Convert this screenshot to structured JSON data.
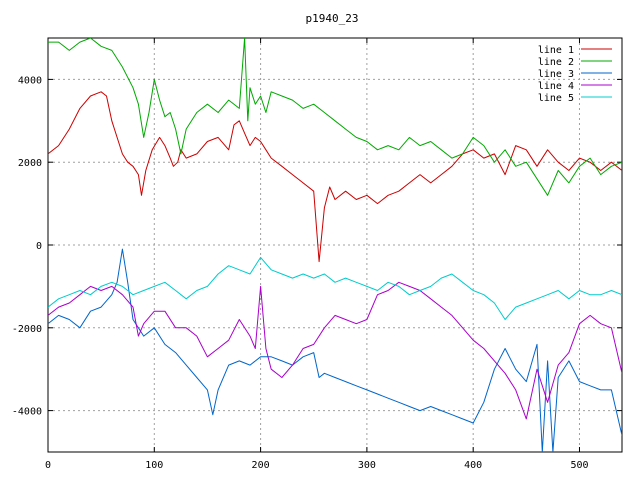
{
  "chart_data": {
    "type": "line",
    "title": "p1940_23",
    "xlabel": "",
    "ylabel": "",
    "xlim": [
      0,
      540
    ],
    "ylim": [
      -5000,
      5000
    ],
    "xticks": [
      0,
      100,
      200,
      300,
      400,
      500
    ],
    "yticks": [
      -4000,
      -2000,
      0,
      2000,
      4000
    ],
    "grid": true,
    "legend_position": "top-right",
    "series": [
      {
        "name": "line 1",
        "color": "#cc0000",
        "x": [
          0,
          10,
          20,
          30,
          40,
          50,
          55,
          60,
          65,
          70,
          75,
          80,
          85,
          88,
          92,
          98,
          105,
          110,
          115,
          118,
          122,
          125,
          130,
          140,
          150,
          160,
          170,
          175,
          180,
          185,
          190,
          195,
          200,
          205,
          210,
          220,
          230,
          240,
          250,
          255,
          260,
          265,
          270,
          280,
          290,
          300,
          310,
          320,
          330,
          340,
          350,
          360,
          370,
          380,
          390,
          400,
          410,
          420,
          430,
          440,
          450,
          460,
          470,
          480,
          490,
          500,
          510,
          520,
          530,
          540
        ],
        "y": [
          2200,
          2400,
          2800,
          3300,
          3600,
          3700,
          3600,
          3000,
          2600,
          2200,
          2000,
          1900,
          1700,
          1200,
          1800,
          2300,
          2600,
          2400,
          2100,
          1900,
          2000,
          2300,
          2100,
          2200,
          2500,
          2600,
          2300,
          2900,
          3000,
          2700,
          2400,
          2600,
          2500,
          2300,
          2100,
          1900,
          1700,
          1500,
          1300,
          -400,
          900,
          1400,
          1100,
          1300,
          1100,
          1200,
          1000,
          1200,
          1300,
          1500,
          1700,
          1500,
          1700,
          1900,
          2200,
          2300,
          2100,
          2200,
          1700,
          2400,
          2300,
          1900,
          2300,
          2000,
          1800,
          2100,
          2000,
          1800,
          2000,
          1800
        ]
      },
      {
        "name": "line 2",
        "color": "#00aa00",
        "x": [
          0,
          10,
          20,
          30,
          40,
          50,
          60,
          70,
          80,
          85,
          90,
          95,
          100,
          105,
          110,
          115,
          120,
          125,
          130,
          140,
          150,
          160,
          170,
          180,
          185,
          188,
          190,
          195,
          200,
          205,
          210,
          220,
          230,
          240,
          250,
          260,
          270,
          280,
          290,
          300,
          310,
          320,
          330,
          340,
          350,
          360,
          370,
          380,
          390,
          400,
          410,
          420,
          430,
          440,
          450,
          460,
          470,
          480,
          490,
          500,
          510,
          520,
          530,
          540
        ],
        "y": [
          4900,
          4900,
          4700,
          4900,
          5000,
          4800,
          4700,
          4300,
          3800,
          3400,
          2600,
          3200,
          4000,
          3500,
          3100,
          3200,
          2800,
          2200,
          2800,
          3200,
          3400,
          3200,
          3500,
          3300,
          5000,
          3000,
          3800,
          3400,
          3600,
          3200,
          3700,
          3600,
          3500,
          3300,
          3400,
          3200,
          3000,
          2800,
          2600,
          2500,
          2300,
          2400,
          2300,
          2600,
          2400,
          2500,
          2300,
          2100,
          2200,
          2600,
          2400,
          2000,
          2300,
          1900,
          2000,
          1600,
          1200,
          1800,
          1500,
          1900,
          2100,
          1700,
          1900,
          2000
        ]
      },
      {
        "name": "line 3",
        "color": "#0066cc",
        "x": [
          0,
          10,
          20,
          30,
          40,
          50,
          60,
          65,
          70,
          75,
          80,
          85,
          90,
          100,
          110,
          120,
          130,
          140,
          150,
          155,
          160,
          170,
          180,
          190,
          200,
          210,
          220,
          230,
          240,
          250,
          255,
          260,
          270,
          280,
          290,
          300,
          310,
          320,
          330,
          340,
          350,
          360,
          370,
          380,
          390,
          400,
          410,
          420,
          430,
          440,
          450,
          460,
          465,
          470,
          475,
          480,
          490,
          500,
          510,
          520,
          530,
          540
        ],
        "y": [
          -1900,
          -1700,
          -1800,
          -2000,
          -1600,
          -1500,
          -1200,
          -900,
          -100,
          -900,
          -1800,
          -2000,
          -2200,
          -2000,
          -2400,
          -2600,
          -2900,
          -3200,
          -3500,
          -4100,
          -3500,
          -2900,
          -2800,
          -2900,
          -2700,
          -2700,
          -2800,
          -2900,
          -2700,
          -2600,
          -3200,
          -3100,
          -3200,
          -3300,
          -3400,
          -3500,
          -3600,
          -3700,
          -3800,
          -3900,
          -4000,
          -3900,
          -4000,
          -4100,
          -4200,
          -4300,
          -3800,
          -3000,
          -2500,
          -3000,
          -3300,
          -2400,
          -5000,
          -2800,
          -5000,
          -3200,
          -2800,
          -3300,
          -3400,
          -3500,
          -3500,
          -4600
        ]
      },
      {
        "name": "line 4",
        "color": "#aa00cc",
        "x": [
          0,
          10,
          20,
          30,
          40,
          50,
          60,
          70,
          80,
          85,
          90,
          100,
          110,
          120,
          130,
          140,
          150,
          160,
          170,
          180,
          190,
          195,
          200,
          205,
          210,
          220,
          230,
          240,
          250,
          260,
          270,
          280,
          290,
          300,
          310,
          320,
          330,
          340,
          350,
          360,
          370,
          380,
          390,
          400,
          410,
          420,
          430,
          440,
          450,
          460,
          470,
          480,
          490,
          500,
          510,
          520,
          530,
          540
        ],
        "y": [
          -1700,
          -1500,
          -1400,
          -1200,
          -1000,
          -1100,
          -1000,
          -1200,
          -1500,
          -2200,
          -1900,
          -1600,
          -1600,
          -2000,
          -2000,
          -2200,
          -2700,
          -2500,
          -2300,
          -1800,
          -2200,
          -2500,
          -1000,
          -2500,
          -3000,
          -3200,
          -2900,
          -2500,
          -2400,
          -2000,
          -1700,
          -1800,
          -1900,
          -1800,
          -1200,
          -1100,
          -900,
          -1000,
          -1100,
          -1300,
          -1500,
          -1700,
          -2000,
          -2300,
          -2500,
          -2800,
          -3100,
          -3500,
          -4200,
          -3000,
          -3800,
          -2900,
          -2600,
          -1900,
          -1700,
          -1900,
          -2000,
          -3100
        ]
      },
      {
        "name": "line 5",
        "color": "#00cccc",
        "x": [
          0,
          10,
          20,
          30,
          40,
          50,
          60,
          70,
          80,
          90,
          100,
          110,
          120,
          130,
          140,
          150,
          160,
          170,
          180,
          190,
          200,
          210,
          220,
          230,
          240,
          250,
          260,
          270,
          280,
          290,
          300,
          310,
          320,
          330,
          340,
          350,
          360,
          370,
          380,
          390,
          400,
          410,
          420,
          430,
          440,
          450,
          460,
          470,
          480,
          490,
          500,
          510,
          520,
          530,
          540
        ],
        "y": [
          -1500,
          -1300,
          -1200,
          -1100,
          -1200,
          -1000,
          -900,
          -1000,
          -1200,
          -1100,
          -1000,
          -900,
          -1100,
          -1300,
          -1100,
          -1000,
          -700,
          -500,
          -600,
          -700,
          -300,
          -600,
          -700,
          -800,
          -700,
          -800,
          -700,
          -900,
          -800,
          -900,
          -1000,
          -1100,
          -900,
          -1000,
          -1200,
          -1100,
          -1000,
          -800,
          -700,
          -900,
          -1100,
          -1200,
          -1400,
          -1800,
          -1500,
          -1400,
          -1300,
          -1200,
          -1100,
          -1300,
          -1100,
          -1200,
          -1200,
          -1100,
          -1200
        ]
      }
    ]
  }
}
